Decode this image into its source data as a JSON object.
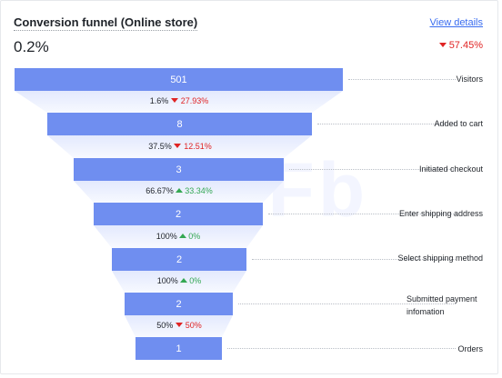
{
  "card": {
    "title": "Conversion funnel (Online store)",
    "view_details": "View details",
    "overall_rate": "0.2%",
    "overall_change": "57.45%"
  },
  "colors": {
    "bar": "#6f8ef0",
    "negative": "#e02424",
    "positive": "#35a853",
    "link": "#3a6df0"
  },
  "watermark": "VeryFb",
  "stages": [
    {
      "name": "Visitors",
      "value": "501"
    },
    {
      "name": "Added to cart",
      "value": "8"
    },
    {
      "name": "Initiated checkout",
      "value": "3"
    },
    {
      "name": "Enter shipping address",
      "value": "2"
    },
    {
      "name": "Select shipping method",
      "value": "2"
    },
    {
      "name": "Submitted payment infomation",
      "value": "2"
    },
    {
      "name": "Orders",
      "value": "1"
    }
  ],
  "conversions": [
    {
      "rate": "1.6%",
      "change": "27.93%",
      "direction": "down"
    },
    {
      "rate": "37.5%",
      "change": "12.51%",
      "direction": "down"
    },
    {
      "rate": "66.67%",
      "change": "33.34%",
      "direction": "up"
    },
    {
      "rate": "100%",
      "change": "0%",
      "direction": "up"
    },
    {
      "rate": "100%",
      "change": "0%",
      "direction": "up"
    },
    {
      "rate": "50%",
      "change": "50%",
      "direction": "down"
    }
  ]
}
